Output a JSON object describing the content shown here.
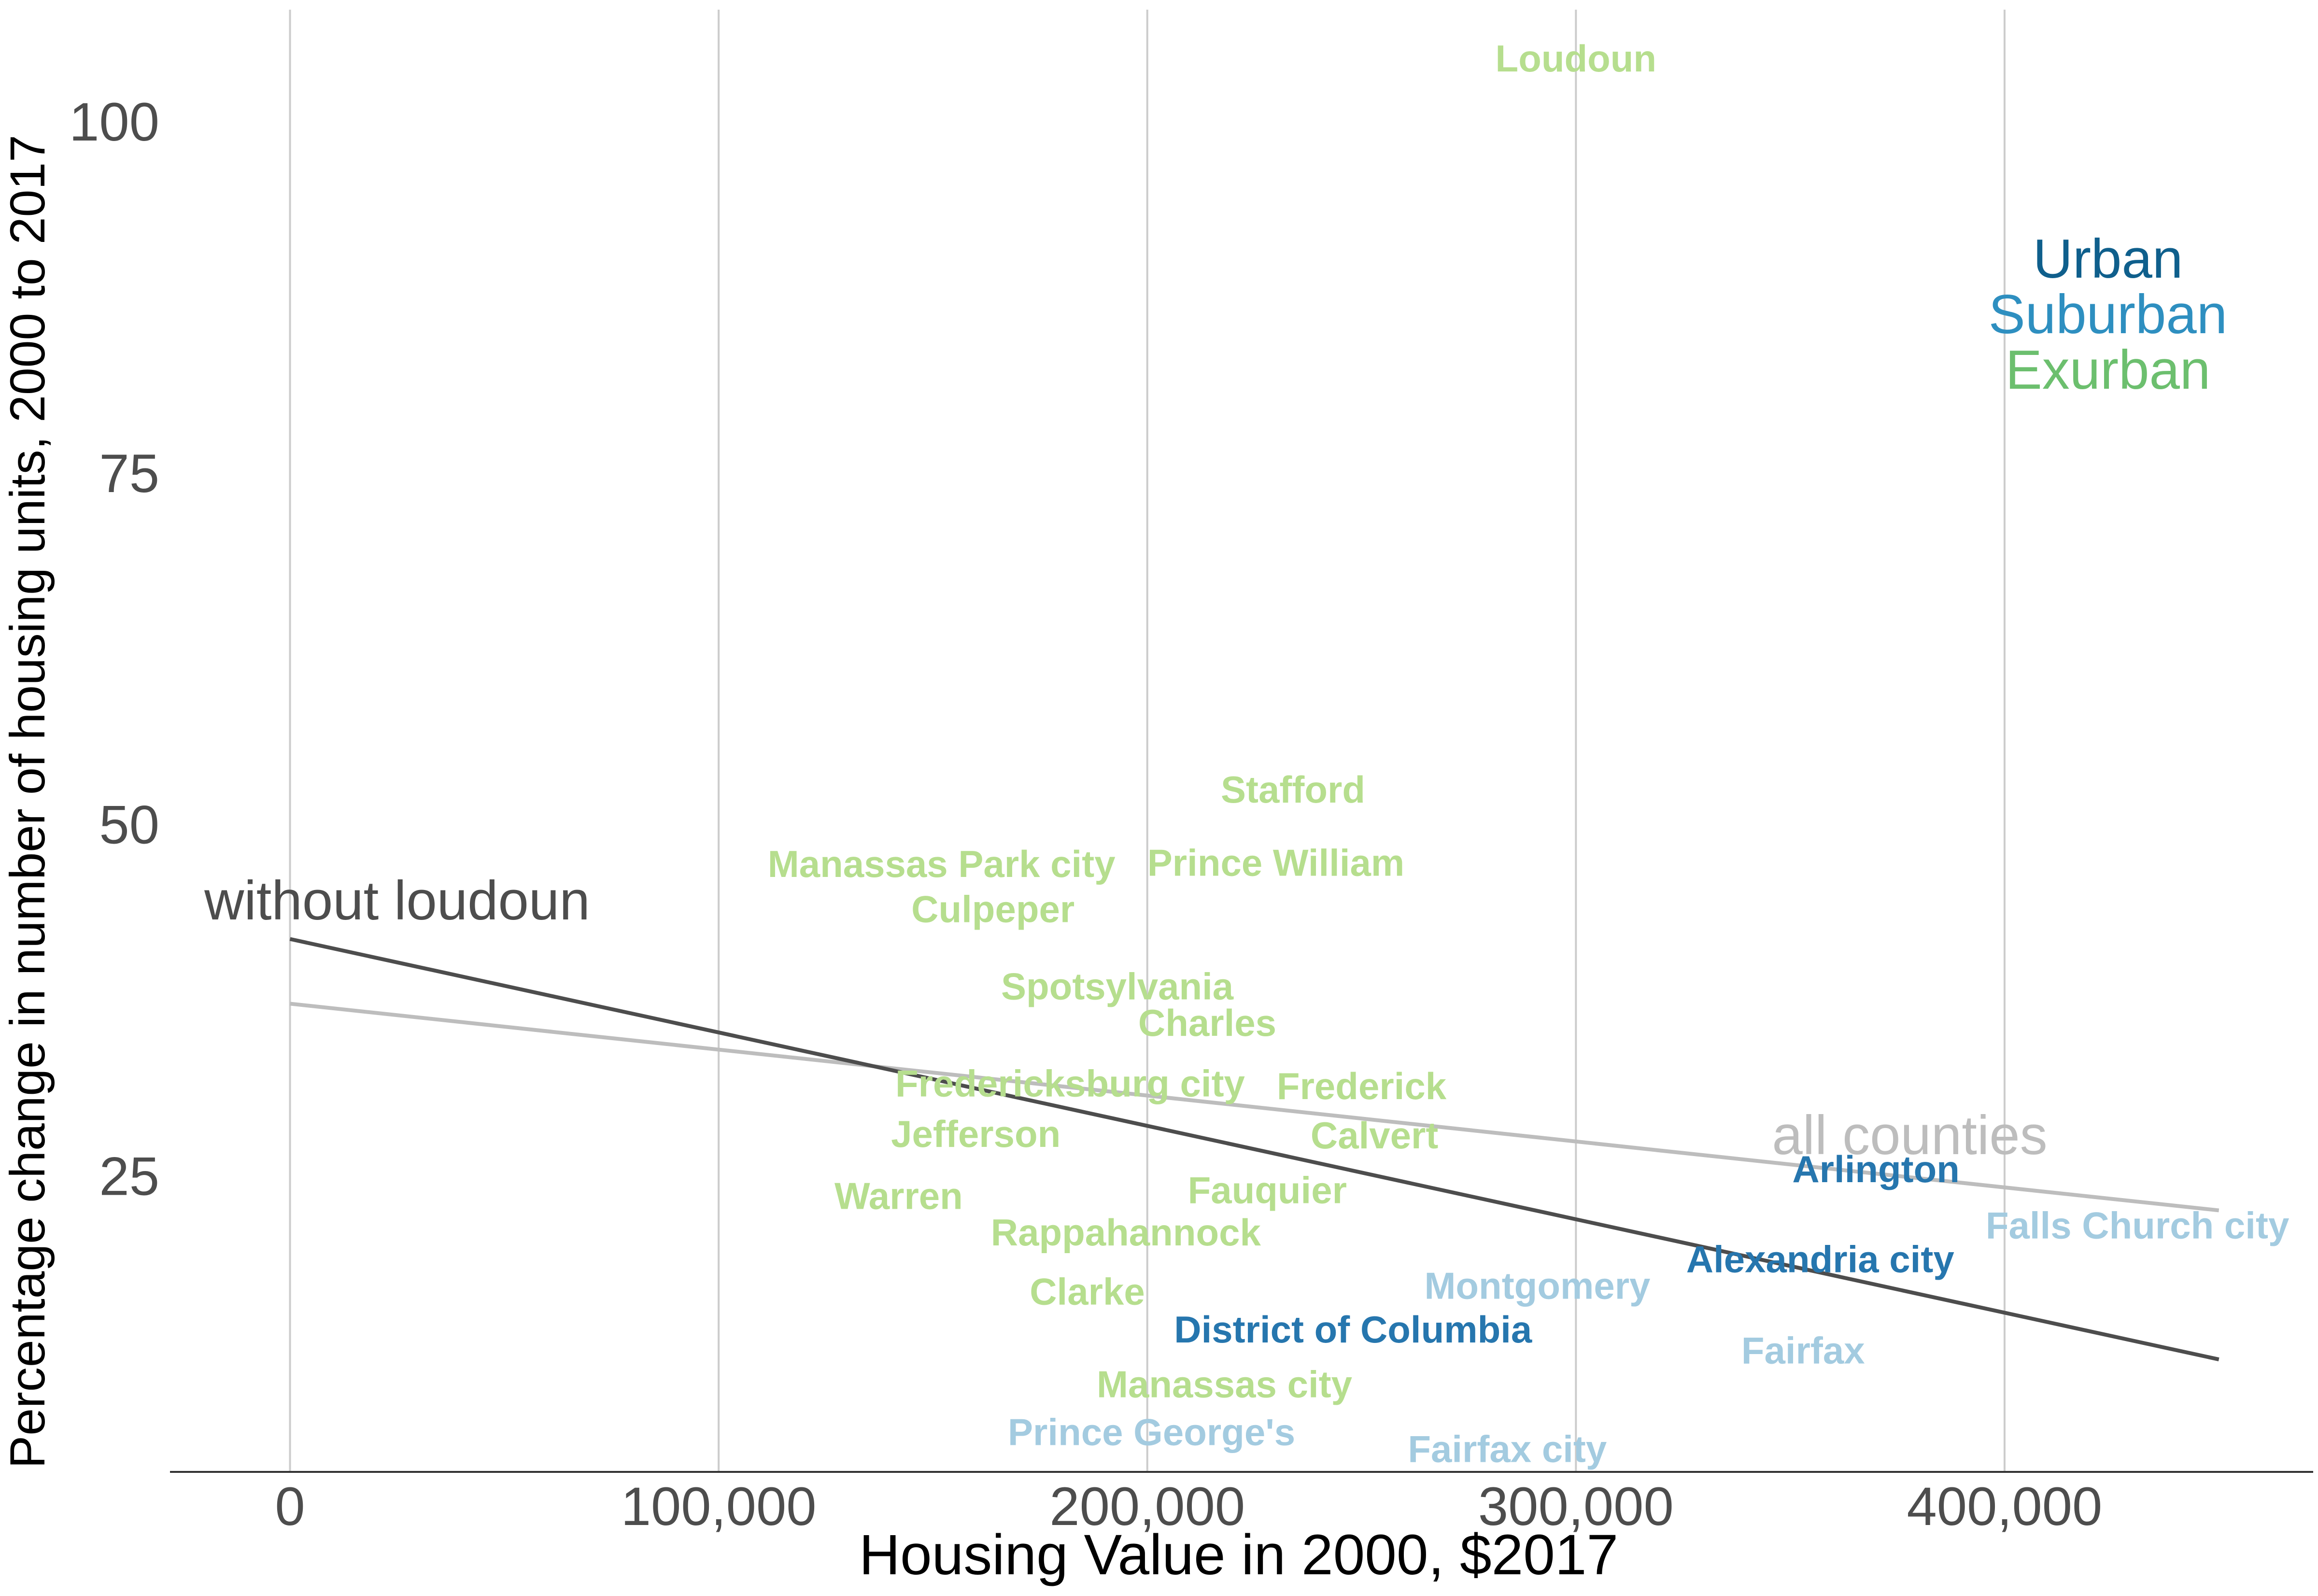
{
  "chart_data": {
    "type": "scatter",
    "title": "",
    "xlabel": "Housing Value in 2000, $2017",
    "ylabel": "Percentage change in number of housing units, 2000 to 2017",
    "xlim": [
      -28000,
      472000
    ],
    "ylim": [
      4,
      108
    ],
    "x_ticks": [
      {
        "value": 0,
        "label": "0"
      },
      {
        "value": 100000,
        "label": "100,000"
      },
      {
        "value": 200000,
        "label": "200,000"
      },
      {
        "value": 300000,
        "label": "300,000"
      },
      {
        "value": 400000,
        "label": "400,000"
      }
    ],
    "y_ticks": [
      {
        "value": 25,
        "label": "25"
      },
      {
        "value": 50,
        "label": "50"
      },
      {
        "value": 75,
        "label": "75"
      },
      {
        "value": 100,
        "label": "100"
      }
    ],
    "grid": {
      "vertical": true,
      "horizontal": false
    },
    "legend": {
      "placement": "top-right",
      "entries": [
        {
          "name": "Urban",
          "color": "#0f5f8c"
        },
        {
          "name": "Suburban",
          "color": "#2e8fc0"
        },
        {
          "name": "Exurban",
          "color": "#6cbf6e"
        }
      ]
    },
    "category_colors": {
      "urban": "#2676ae",
      "suburban": "#a3cbe0",
      "exurban": "#b6de8e"
    },
    "points": [
      {
        "label": "Loudoun",
        "x": 300000,
        "y": 104.5,
        "category": "exurban"
      },
      {
        "label": "Stafford",
        "x": 234000,
        "y": 52.5,
        "category": "exurban"
      },
      {
        "label": "Manassas Park city",
        "x": 152000,
        "y": 47.2,
        "category": "exurban"
      },
      {
        "label": "Prince William",
        "x": 230000,
        "y": 47.3,
        "category": "exurban"
      },
      {
        "label": "Culpeper",
        "x": 164000,
        "y": 44.0,
        "category": "exurban"
      },
      {
        "label": "Spotsylvania",
        "x": 193000,
        "y": 38.5,
        "category": "exurban"
      },
      {
        "label": "Charles",
        "x": 214000,
        "y": 35.9,
        "category": "exurban"
      },
      {
        "label": "Fredericksburg city",
        "x": 182000,
        "y": 31.6,
        "category": "exurban"
      },
      {
        "label": "Frederick",
        "x": 250000,
        "y": 31.4,
        "category": "exurban"
      },
      {
        "label": "Jefferson",
        "x": 160000,
        "y": 28.0,
        "category": "exurban"
      },
      {
        "label": "Calvert",
        "x": 253000,
        "y": 27.9,
        "category": "exurban"
      },
      {
        "label": "Warren",
        "x": 142000,
        "y": 23.6,
        "category": "exurban"
      },
      {
        "label": "Fauquier",
        "x": 228000,
        "y": 24.0,
        "category": "exurban"
      },
      {
        "label": "Rappahannock",
        "x": 195000,
        "y": 21.0,
        "category": "exurban"
      },
      {
        "label": "Clarke",
        "x": 186000,
        "y": 16.8,
        "category": "exurban"
      },
      {
        "label": "Manassas city",
        "x": 218000,
        "y": 10.2,
        "category": "exurban"
      },
      {
        "label": "Arlington",
        "x": 370000,
        "y": 25.5,
        "category": "urban"
      },
      {
        "label": "Alexandria city",
        "x": 357000,
        "y": 19.1,
        "category": "urban"
      },
      {
        "label": "District of Columbia",
        "x": 248000,
        "y": 14.1,
        "category": "urban"
      },
      {
        "label": "Falls Church city",
        "x": 431000,
        "y": 21.5,
        "category": "suburban"
      },
      {
        "label": "Montgomery",
        "x": 291000,
        "y": 17.2,
        "category": "suburban"
      },
      {
        "label": "Fairfax",
        "x": 353000,
        "y": 12.6,
        "category": "suburban"
      },
      {
        "label": "Prince George's",
        "x": 201000,
        "y": 6.8,
        "category": "suburban"
      },
      {
        "label": "Fairfax city",
        "x": 284000,
        "y": 5.6,
        "category": "suburban"
      }
    ],
    "fit_lines": [
      {
        "name": "without loudoun",
        "x": [
          0,
          450000
        ],
        "y": [
          41.9,
          12.0
        ],
        "color": "#4d4d4d",
        "label_at": {
          "x": 25000,
          "y": 43.3,
          "anchor": "middle"
        }
      },
      {
        "name": "all counties",
        "x": [
          0,
          450000
        ],
        "y": [
          37.3,
          22.6
        ],
        "color": "#bdbdbd",
        "label_at": {
          "x": 410000,
          "y": 26.6,
          "anchor": "end"
        }
      }
    ]
  }
}
